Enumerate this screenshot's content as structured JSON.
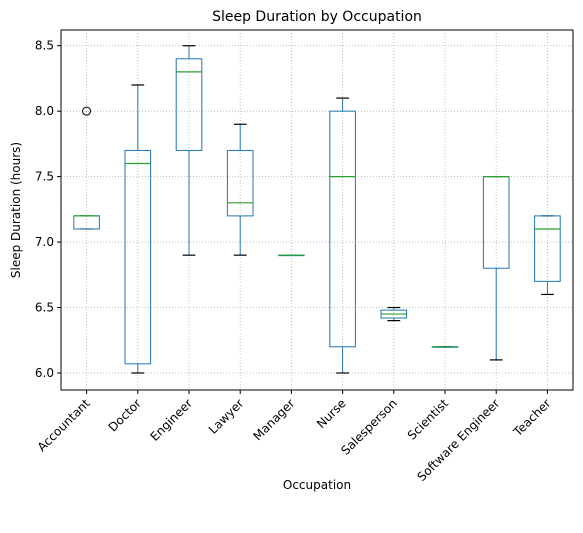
{
  "chart_data": {
    "type": "box",
    "title": "Sleep Duration by Occupation",
    "xlabel": "Occupation",
    "ylabel": "Sleep Duration (hours)",
    "ylim": [
      5.87,
      8.62
    ],
    "yticks": [
      6.0,
      6.5,
      7.0,
      7.5,
      8.0,
      8.5
    ],
    "ytick_labels": [
      "6.0",
      "6.5",
      "7.0",
      "7.5",
      "8.0",
      "8.5"
    ],
    "grid": true,
    "grid_style": "dotted",
    "categories": [
      "Accountant",
      "Doctor",
      "Engineer",
      "Lawyer",
      "Manager",
      "Nurse",
      "Salesperson",
      "Scientist",
      "Software Engineer",
      "Teacher"
    ],
    "boxes": [
      {
        "q1": 7.1,
        "median": 7.2,
        "q3": 7.2,
        "whislo": 7.1,
        "whishi": 7.2,
        "fliers": [
          8.0
        ]
      },
      {
        "q1": 6.07,
        "median": 7.6,
        "q3": 7.7,
        "whislo": 6.0,
        "whishi": 8.2,
        "fliers": []
      },
      {
        "q1": 7.7,
        "median": 8.3,
        "q3": 8.4,
        "whislo": 6.9,
        "whishi": 8.5,
        "fliers": []
      },
      {
        "q1": 7.2,
        "median": 7.3,
        "q3": 7.7,
        "whislo": 6.9,
        "whishi": 7.9,
        "fliers": []
      },
      {
        "q1": 6.9,
        "median": 6.9,
        "q3": 6.9,
        "whislo": 6.9,
        "whishi": 6.9,
        "fliers": []
      },
      {
        "q1": 6.2,
        "median": 7.5,
        "q3": 8.0,
        "whislo": 6.0,
        "whishi": 8.1,
        "fliers": []
      },
      {
        "q1": 6.42,
        "median": 6.45,
        "q3": 6.48,
        "whislo": 6.4,
        "whishi": 6.5,
        "fliers": []
      },
      {
        "q1": 6.2,
        "median": 6.2,
        "q3": 6.2,
        "whislo": 6.2,
        "whishi": 6.2,
        "fliers": []
      },
      {
        "q1": 6.8,
        "median": 7.5,
        "q3": 7.5,
        "whislo": 6.1,
        "whishi": 7.5,
        "fliers": []
      },
      {
        "q1": 6.7,
        "median": 7.1,
        "q3": 7.2,
        "whislo": 6.6,
        "whishi": 7.2,
        "fliers": []
      }
    ],
    "colors": {
      "box": "#1f77b4",
      "median": "#2ca02c",
      "whisker": "#1f77b4",
      "cap": "#000000",
      "flier": "#000000",
      "grid": "#b0b0b0"
    }
  }
}
